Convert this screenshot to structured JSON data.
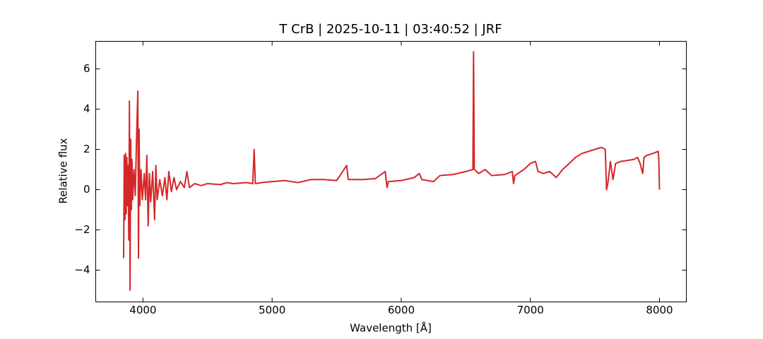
{
  "chart_data": {
    "type": "line",
    "title": "T CrB | 2025-10-11 | 03:40:52 | JRF",
    "x_label": "Wavelength [Å]",
    "y_label": "Relative flux",
    "xlim": [
      3634,
      8208
    ],
    "ylim": [
      -5.58,
      7.37
    ],
    "xticks": [
      4000,
      5000,
      6000,
      7000,
      8000
    ],
    "yticks": [
      {
        "value": -4,
        "label": "−4"
      },
      {
        "value": -2,
        "label": "−2"
      },
      0,
      2,
      4,
      6
    ],
    "grid": false,
    "series": [
      {
        "name": "T CrB",
        "color": "#d62728",
        "x": [
          3850,
          3855,
          3860,
          3865,
          3870,
          3875,
          3880,
          3885,
          3890,
          3895,
          3900,
          3905,
          3910,
          3915,
          3920,
          3930,
          3940,
          3950,
          3960,
          3965,
          3970,
          3975,
          3985,
          3995,
          4010,
          4020,
          4030,
          4040,
          4050,
          4060,
          4075,
          4090,
          4100,
          4110,
          4130,
          4150,
          4170,
          4185,
          4200,
          4220,
          4240,
          4260,
          4290,
          4320,
          4340,
          4360,
          4400,
          4450,
          4500,
          4600,
          4650,
          4700,
          4800,
          4850,
          4861,
          4870,
          4920,
          5000,
          5100,
          5200,
          5300,
          5400,
          5500,
          5577,
          5590,
          5700,
          5800,
          5876,
          5890,
          5900,
          6000,
          6100,
          6140,
          6160,
          6250,
          6300,
          6400,
          6500,
          6555,
          6560,
          6566,
          6600,
          6650,
          6700,
          6800,
          6860,
          6870,
          6880,
          6950,
          7000,
          7040,
          7060,
          7100,
          7150,
          7200,
          7250,
          7300,
          7350,
          7400,
          7450,
          7500,
          7550,
          7580,
          7590,
          7600,
          7620,
          7640,
          7660,
          7700,
          7750,
          7800,
          7830,
          7850,
          7870,
          7880,
          7900,
          7950,
          7990,
          7995,
          8000
        ],
        "values": [
          -3.4,
          1.7,
          -1.5,
          1.8,
          -1.2,
          1.6,
          -0.8,
          1.2,
          -2.5,
          4.4,
          -5.0,
          2.5,
          -1.0,
          1.5,
          -0.5,
          1.0,
          -0.3,
          2.5,
          4.9,
          -3.4,
          3.0,
          -0.8,
          1.0,
          -0.5,
          0.8,
          -0.5,
          1.7,
          -1.8,
          0.8,
          -0.6,
          0.9,
          -1.5,
          1.2,
          -0.5,
          0.5,
          -0.3,
          0.6,
          -0.5,
          0.9,
          -0.1,
          0.6,
          0.0,
          0.4,
          0.1,
          0.9,
          0.1,
          0.3,
          0.2,
          0.3,
          0.25,
          0.35,
          0.3,
          0.35,
          0.3,
          2.0,
          0.3,
          0.35,
          0.4,
          0.45,
          0.35,
          0.5,
          0.5,
          0.45,
          1.2,
          0.5,
          0.5,
          0.55,
          0.9,
          0.1,
          0.4,
          0.45,
          0.6,
          0.8,
          0.5,
          0.4,
          0.7,
          0.75,
          0.9,
          1.0,
          6.85,
          1.0,
          0.8,
          1.0,
          0.7,
          0.75,
          0.9,
          0.3,
          0.7,
          1.0,
          1.3,
          1.4,
          0.9,
          0.8,
          0.9,
          0.6,
          1.0,
          1.3,
          1.6,
          1.8,
          1.9,
          2.0,
          2.1,
          2.0,
          0.0,
          0.3,
          1.4,
          0.5,
          1.3,
          1.4,
          1.45,
          1.5,
          1.6,
          1.3,
          0.8,
          1.6,
          1.7,
          1.8,
          1.9,
          1.5,
          0.0
        ]
      }
    ]
  }
}
